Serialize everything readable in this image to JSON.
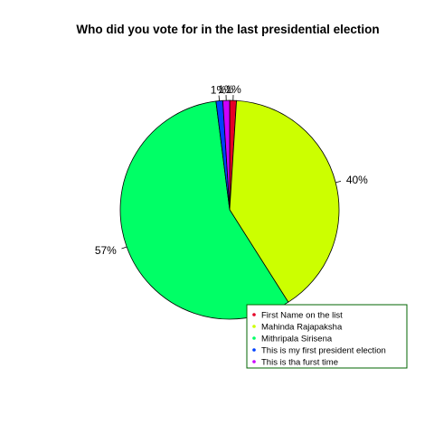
{
  "chart_data": {
    "type": "pie",
    "title": "Who did you vote for in the last presidential election",
    "slices": [
      {
        "label": "First Name on the list",
        "value": 1,
        "display": "1%",
        "color": "#E60026"
      },
      {
        "label": "Mahinda Rajapaksha",
        "value": 40,
        "display": "40%",
        "color": "#CCFF00"
      },
      {
        "label": "Mithripala Sirisena",
        "value": 57,
        "display": "57%",
        "color": "#00FF66"
      },
      {
        "label": "This is my first president election",
        "value": 1,
        "display": "1%",
        "color": "#0040FF"
      },
      {
        "label": "This is tha furst time",
        "value": 1,
        "display": "1%",
        "color": "#CC00FF"
      }
    ],
    "direction": "clockwise",
    "start_angle": "12 o'clock",
    "legend_position": "bottom-right",
    "legend_border_color": "#006400"
  }
}
